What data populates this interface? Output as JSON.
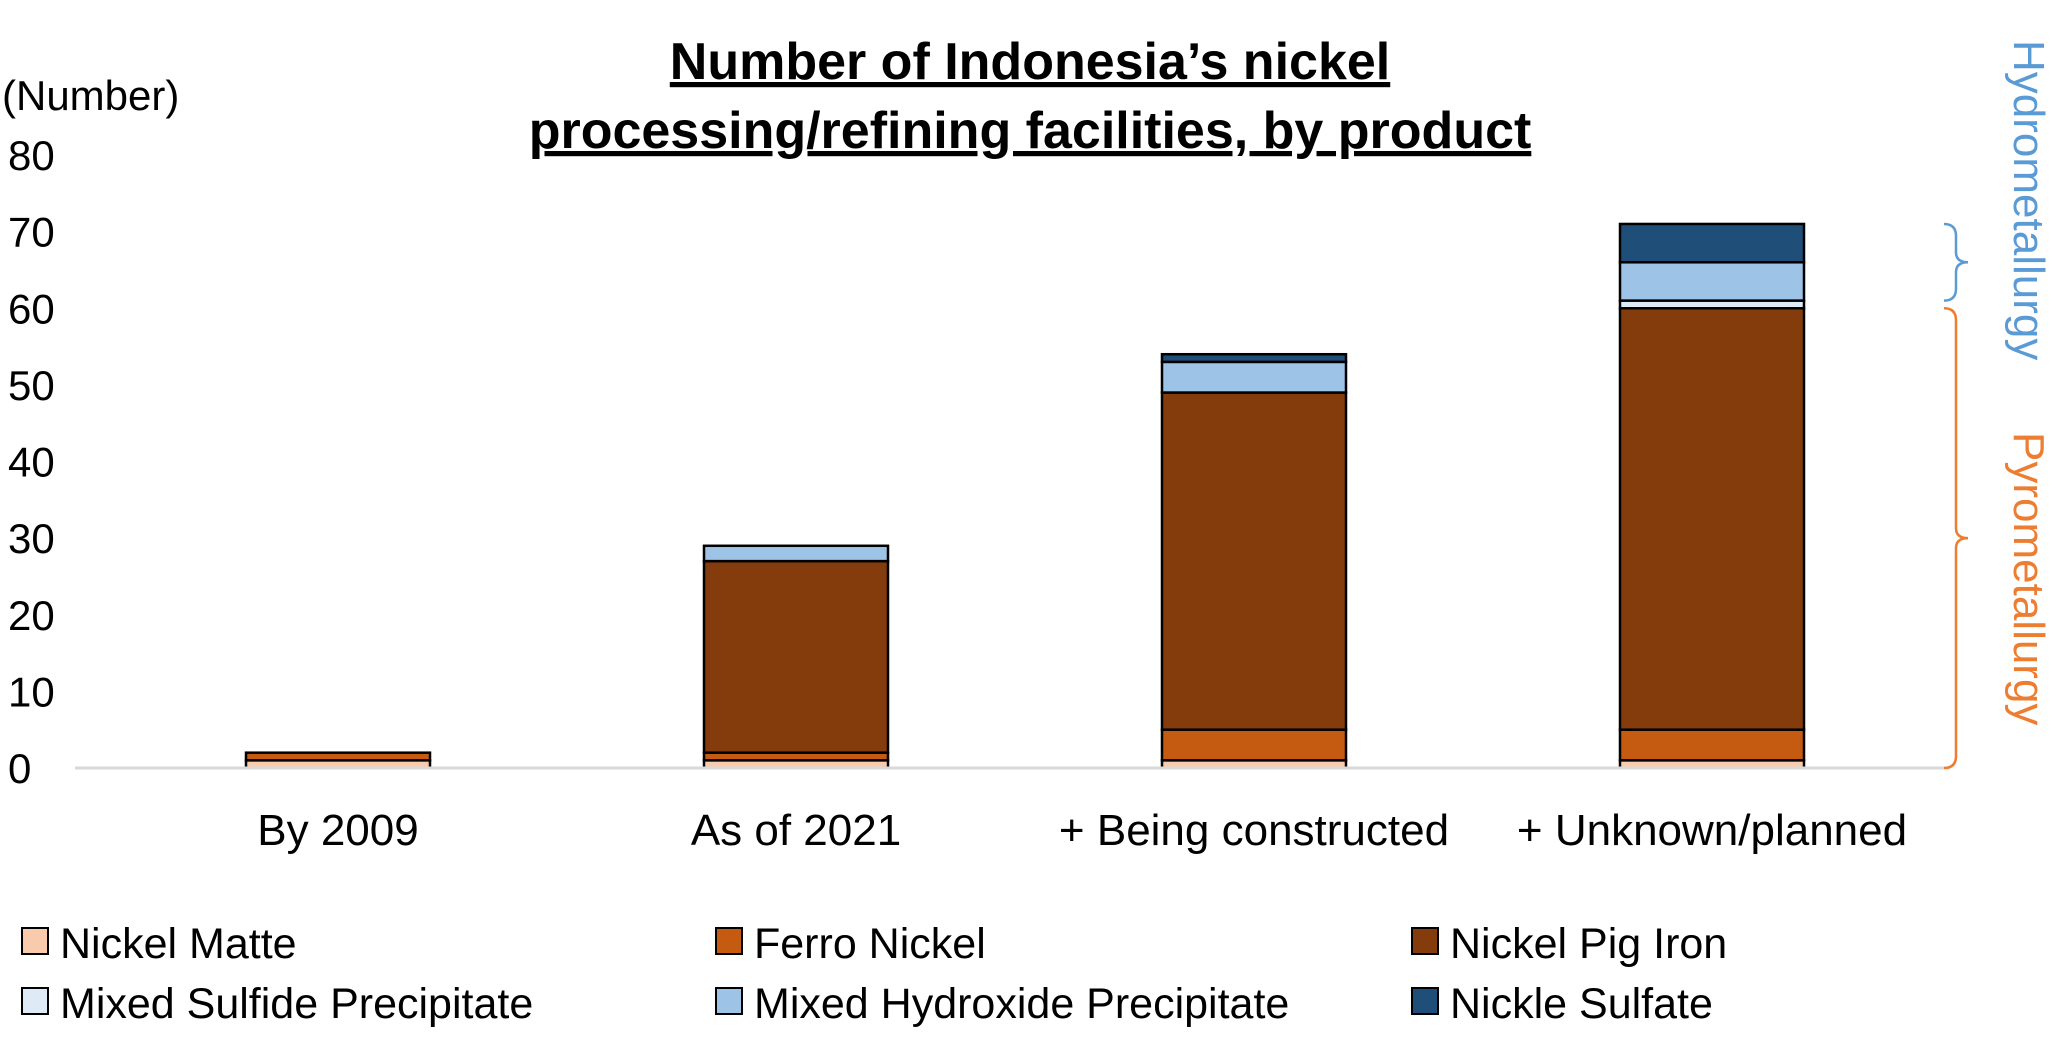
{
  "chart_data": {
    "type": "bar",
    "stacked": true,
    "title_lines": [
      "Number of Indonesia’s nickel",
      "processing/refining facilities, by product"
    ],
    "ylabel": "(Number)",
    "ylim": [
      0,
      80
    ],
    "yticks": [
      0,
      10,
      20,
      30,
      40,
      50,
      60,
      70,
      80
    ],
    "categories": [
      "By 2009",
      "As of 2021",
      "+ Being constructed",
      "+ Unknown/planned"
    ],
    "series": [
      {
        "name": "Nickel Matte",
        "color": "#F8CBAD",
        "values": [
          1,
          1,
          1,
          1
        ]
      },
      {
        "name": "Ferro Nickel",
        "color": "#C55A11",
        "values": [
          1,
          1,
          4,
          4
        ]
      },
      {
        "name": "Nickel Pig Iron",
        "color": "#843C0C",
        "values": [
          0,
          25,
          44,
          55
        ]
      },
      {
        "name": "Mixed Sulfide Precipitate",
        "color": "#DEEBF7",
        "values": [
          0,
          0,
          0,
          1
        ]
      },
      {
        "name": "Mixed Hydroxide Precipitate",
        "color": "#9DC3E6",
        "values": [
          0,
          2,
          4,
          5
        ]
      },
      {
        "name": "Nickle Sulfate",
        "color": "#1F4E79",
        "values": [
          0,
          0,
          1,
          5
        ]
      }
    ],
    "groups": [
      {
        "label": "Hydrometallurgy",
        "color": "#5B9BD5",
        "range": [
          61,
          71
        ]
      },
      {
        "label": "Pyrometallurgy",
        "color": "#ED7D31",
        "range": [
          0,
          60
        ]
      }
    ],
    "legend_position": "bottom",
    "grid": false
  }
}
